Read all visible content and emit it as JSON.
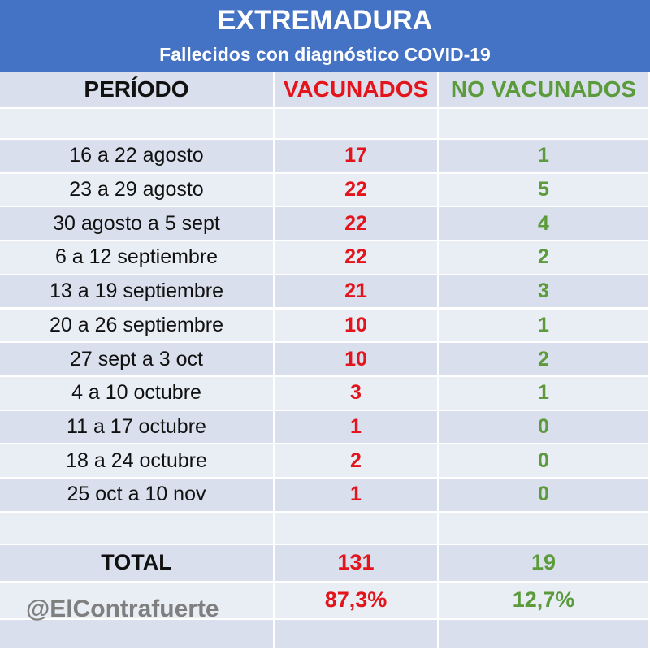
{
  "header": {
    "title": "EXTREMADURA",
    "subtitle": "Fallecidos con diagnóstico COVID-19"
  },
  "table": {
    "columns": [
      "PERÍODO",
      "VACUNADOS",
      "NO VACUNADOS"
    ],
    "rows": [
      [
        "16 a 22 agosto",
        17,
        1
      ],
      [
        "23 a 29 agosto",
        22,
        5
      ],
      [
        "30 agosto a 5 sept",
        22,
        4
      ],
      [
        "6 a 12 septiembre",
        22,
        2
      ],
      [
        "13 a 19 septiembre",
        21,
        3
      ],
      [
        "20 a 26 septiembre",
        10,
        1
      ],
      [
        "27 sept a 3 oct",
        10,
        2
      ],
      [
        "4 a 10 octubre",
        3,
        1
      ],
      [
        "11 a 17 octubre",
        1,
        0
      ],
      [
        "18 a 24 octubre",
        2,
        0
      ],
      [
        "25 oct a 10 nov",
        1,
        0
      ]
    ],
    "total": [
      "TOTAL",
      131,
      19
    ],
    "percentages": [
      "87,3%",
      "12,7%"
    ]
  },
  "watermark": "@ElContrafuerte"
}
